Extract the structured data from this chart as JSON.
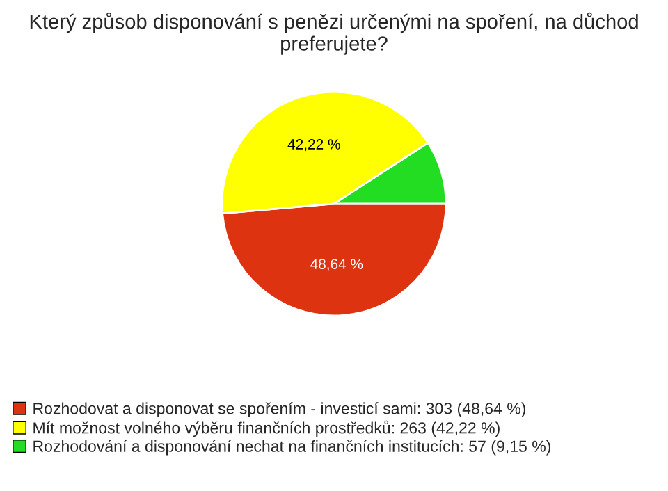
{
  "chart_data": {
    "type": "pie",
    "title": "Který způsob disponování s penězi určenými na spoření, na důchod preferujete?",
    "categories": [
      "Rozhodovat a disponovat se spořením - investicí sami: 303 (48,64 %)",
      "Mít možnost volného výběru finančních prostředků: 263 (42,22 %)",
      "Rozhodování a disponování nechat na finančních institucích: 57 (9,15 %)"
    ],
    "values": [
      48.64,
      42.22,
      9.15
    ],
    "value_labels": [
      "48,64 %",
      "42,22 %",
      null
    ],
    "colors": [
      "#dd3311",
      "#ffff00",
      "#22dd22"
    ],
    "legend": "bottom"
  }
}
